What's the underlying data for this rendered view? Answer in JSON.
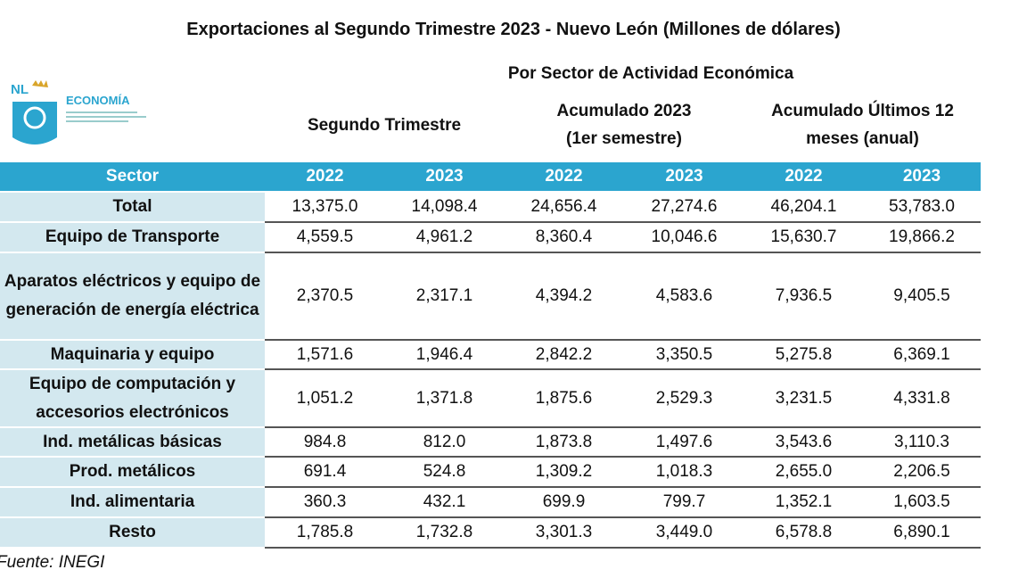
{
  "title": "Exportaciones al Segundo Trimestre 2023 - Nuevo León (Millones de dólares)",
  "subtitle": "Por Sector de Actividad Económica",
  "logo": {
    "brand": "NL",
    "label": "ECONOMÍA"
  },
  "groups": [
    {
      "lines": [
        "Segundo Trimestre"
      ]
    },
    {
      "lines": [
        "Acumulado 2023",
        "(1er semestre)"
      ]
    },
    {
      "lines": [
        "Acumulado Últimos 12",
        "meses (anual)"
      ]
    }
  ],
  "table": {
    "header": [
      "Sector",
      "2022",
      "2023",
      "2022",
      "2023",
      "2022",
      "2023"
    ],
    "rows": [
      [
        "Total",
        "13,375.0",
        "14,098.4",
        "24,656.4",
        "27,274.6",
        "46,204.1",
        "53,783.0"
      ],
      [
        "Equipo de Transporte",
        "4,559.5",
        "4,961.2",
        "8,360.4",
        "10,046.6",
        "15,630.7",
        "19,866.2"
      ],
      [
        "Aparatos eléctricos y equipo de generación de energía eléctrica",
        "2,370.5",
        "2,317.1",
        "4,394.2",
        "4,583.6",
        "7,936.5",
        "9,405.5"
      ],
      [
        "Maquinaria y equipo",
        "1,571.6",
        "1,946.4",
        "2,842.2",
        "3,350.5",
        "5,275.8",
        "6,369.1"
      ],
      [
        "Equipo de computación y accesorios electrónicos",
        "1,051.2",
        "1,371.8",
        "1,875.6",
        "2,529.3",
        "3,231.5",
        "4,331.8"
      ],
      [
        "Ind. metálicas básicas",
        "984.8",
        "812.0",
        "1,873.8",
        "1,497.6",
        "3,543.6",
        "3,110.3"
      ],
      [
        "Prod. metálicos",
        "691.4",
        "524.8",
        "1,309.2",
        "1,018.3",
        "2,655.0",
        "2,206.5"
      ],
      [
        "Ind. alimentaria",
        "360.3",
        "432.1",
        "699.9",
        "799.7",
        "1,352.1",
        "1,603.5"
      ],
      [
        "Resto",
        "1,785.8",
        "1,732.8",
        "3,301.3",
        "3,449.0",
        "6,578.8",
        "6,890.1"
      ]
    ]
  },
  "source": "Fuente: INEGI"
}
